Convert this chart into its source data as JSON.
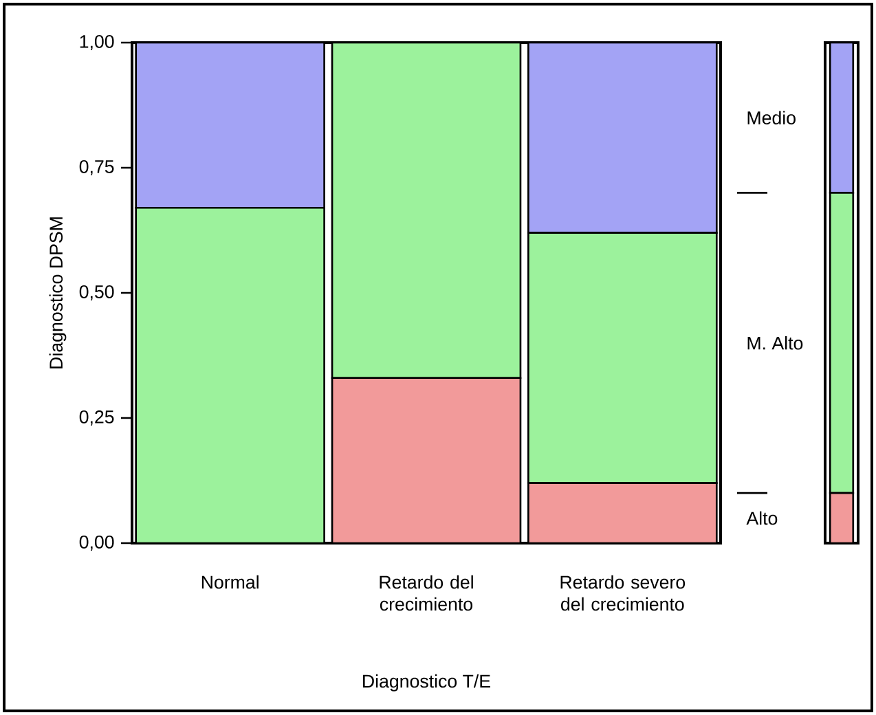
{
  "chart_data": [
    {
      "type": "bar",
      "stacked": true,
      "xlabel": "Diagnostico T/E",
      "ylabel": "Diagnostico DPSM",
      "categories": [
        "Normal",
        "Retardo del crecimiento",
        "Retardo severo del crecimiento"
      ],
      "series": [
        {
          "color": "#f29a9a",
          "values": [
            0,
            0.33,
            0.12
          ]
        },
        {
          "color": "#9cf29c",
          "values": [
            0.67,
            0.67,
            0.5
          ]
        },
        {
          "color": "#a3a3f5",
          "values": [
            0.33,
            0,
            0.38
          ]
        }
      ],
      "ylim": [
        0,
        1
      ],
      "yticks": [
        {
          "value": 0,
          "label": "0,00"
        },
        {
          "value": 0.25,
          "label": "0,25"
        },
        {
          "value": 0.5,
          "label": "0,50"
        },
        {
          "value": 0.75,
          "label": "0,75"
        },
        {
          "value": 1,
          "label": "1,00"
        }
      ]
    },
    {
      "type": "bar",
      "stacked": true,
      "categories": [
        null
      ],
      "series": [
        {
          "name": "Alto",
          "color": "#f29a9a",
          "values": [
            0.1
          ]
        },
        {
          "name": "M. Alto",
          "color": "#9cf29c",
          "values": [
            0.6
          ]
        },
        {
          "name": "Medio",
          "color": "#a3a3f5",
          "values": [
            0.3
          ]
        }
      ],
      "ylim": [
        0,
        1
      ],
      "legend": "left"
    }
  ]
}
